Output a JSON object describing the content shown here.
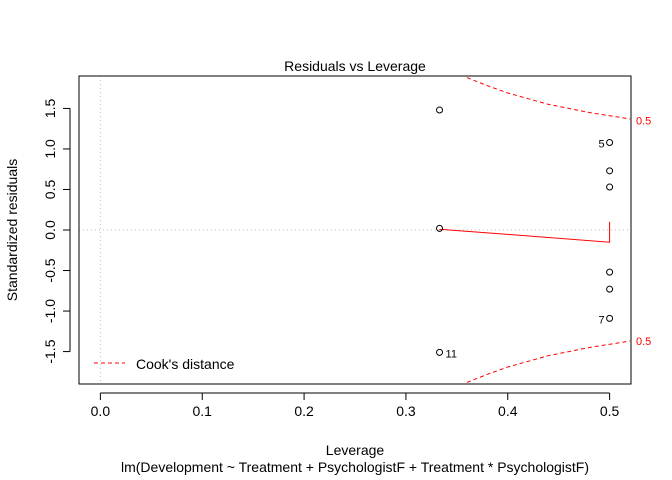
{
  "chart_data": {
    "type": "scatter",
    "title": "Residuals vs Leverage",
    "xlabel": "Leverage",
    "subtitle": "lm(Development ~ Treatment + PsychologistF + Treatment * PsychologistF)",
    "ylabel": "Standardized residuals",
    "xlim": [
      -0.021,
      0.521
    ],
    "ylim": [
      -1.9,
      1.9
    ],
    "x_ticks": [
      0.0,
      0.1,
      0.2,
      0.3,
      0.4,
      0.5
    ],
    "x_tick_labels": [
      "0.0",
      "0.1",
      "0.2",
      "0.3",
      "0.4",
      "0.5"
    ],
    "y_ticks": [
      -1.5,
      -1.0,
      -0.5,
      0.0,
      0.5,
      1.0,
      1.5
    ],
    "y_tick_labels": [
      "-1.5",
      "-1.0",
      "-0.5",
      "0.0",
      "0.5",
      "1.0",
      "1.5"
    ],
    "points": [
      {
        "x": 0.333,
        "y": 1.48,
        "label": ""
      },
      {
        "x": 0.333,
        "y": 0.02,
        "label": ""
      },
      {
        "x": 0.333,
        "y": -1.51,
        "label": "11"
      },
      {
        "x": 0.5,
        "y": 1.08,
        "label": "5"
      },
      {
        "x": 0.5,
        "y": 0.73,
        "label": ""
      },
      {
        "x": 0.5,
        "y": 0.53,
        "label": ""
      },
      {
        "x": 0.5,
        "y": -0.52,
        "label": ""
      },
      {
        "x": 0.5,
        "y": -0.73,
        "label": ""
      },
      {
        "x": 0.5,
        "y": -1.09,
        "label": "7"
      }
    ],
    "smoother": {
      "x": [
        0.333,
        0.5,
        0.5
      ],
      "y": [
        0.01,
        -0.15,
        0.1
      ]
    },
    "cooks_distance": {
      "legend": "Cook's distance",
      "level_label": "0.5",
      "upper": {
        "x": [
          0.36,
          0.38,
          0.4,
          0.42,
          0.44,
          0.46,
          0.48,
          0.5,
          0.52
        ],
        "y": [
          1.88,
          1.78,
          1.69,
          1.62,
          1.55,
          1.5,
          1.45,
          1.41,
          1.37
        ]
      },
      "lower": {
        "x": [
          0.36,
          0.38,
          0.4,
          0.42,
          0.44,
          0.46,
          0.48,
          0.5,
          0.52
        ],
        "y": [
          -1.88,
          -1.78,
          -1.69,
          -1.62,
          -1.55,
          -1.5,
          -1.45,
          -1.41,
          -1.37
        ]
      },
      "upper_label_y": 1.35,
      "lower_label_y": -1.37
    },
    "ref_vline_x": 0,
    "ref_hline_y": 0,
    "grid": false,
    "legend_position": "bottom-left",
    "colors": {
      "points": "#000000",
      "smoother": "#ff0000",
      "cooks": "#ff0000",
      "ref_lines": "#bebebe",
      "axes": "#000000"
    }
  }
}
